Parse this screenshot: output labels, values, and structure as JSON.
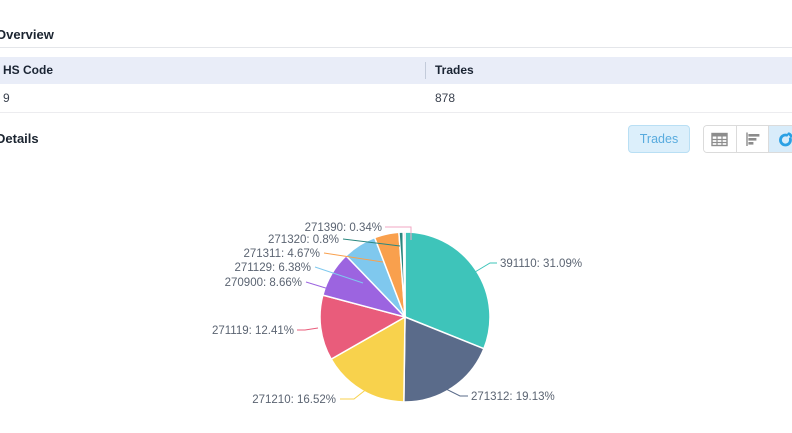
{
  "overview": {
    "title": "Overview",
    "table": {
      "columns": [
        "HS Code",
        "Trades"
      ],
      "rows": [
        [
          "9",
          "878"
        ]
      ]
    }
  },
  "details": {
    "title": "Details",
    "trades_button_label": "Trades",
    "view_toggle": {
      "buttons": [
        "table-view",
        "bar-chart-view",
        "pie-chart-view"
      ],
      "active": "pie-chart-view"
    }
  },
  "colors": {
    "table_header_bg": "#e9edf8",
    "trades_button_bg": "#dceffb",
    "trades_button_text": "#58abde",
    "active_toggle_bg": "#d8ecfa",
    "active_toggle_icon": "#2ba0e4",
    "inactive_toggle_icon": "#8c8c8c",
    "pie_label_text": "#5b6472"
  },
  "chart_data": {
    "type": "pie",
    "title": "",
    "legend": "none",
    "label_position": "outside-with-leader-lines",
    "unit": "percent",
    "slices": [
      {
        "code": "391110",
        "value": 31.09,
        "label": "391110: 31.09%",
        "color": "#3ec4ba"
      },
      {
        "code": "271312",
        "value": 19.13,
        "label": "271312: 19.13%",
        "color": "#5a6b8a"
      },
      {
        "code": "271210",
        "value": 16.52,
        "label": "271210: 16.52%",
        "color": "#f8d24c"
      },
      {
        "code": "271119",
        "value": 12.41,
        "label": "271119: 12.41%",
        "color": "#e95c7b"
      },
      {
        "code": "270900",
        "value": 8.66,
        "label": "270900: 8.66%",
        "color": "#9c64e0"
      },
      {
        "code": "271129",
        "value": 6.38,
        "label": "271129: 6.38%",
        "color": "#7fc8ee"
      },
      {
        "code": "271311",
        "value": 4.67,
        "label": "271311: 4.67%",
        "color": "#f9a04d"
      },
      {
        "code": "271320",
        "value": 0.8,
        "label": "271320: 0.8%",
        "color": "#2a877f"
      },
      {
        "code": "271390",
        "value": 0.34,
        "label": "271390: 0.34%",
        "color": "#f2a7c3"
      }
    ]
  }
}
